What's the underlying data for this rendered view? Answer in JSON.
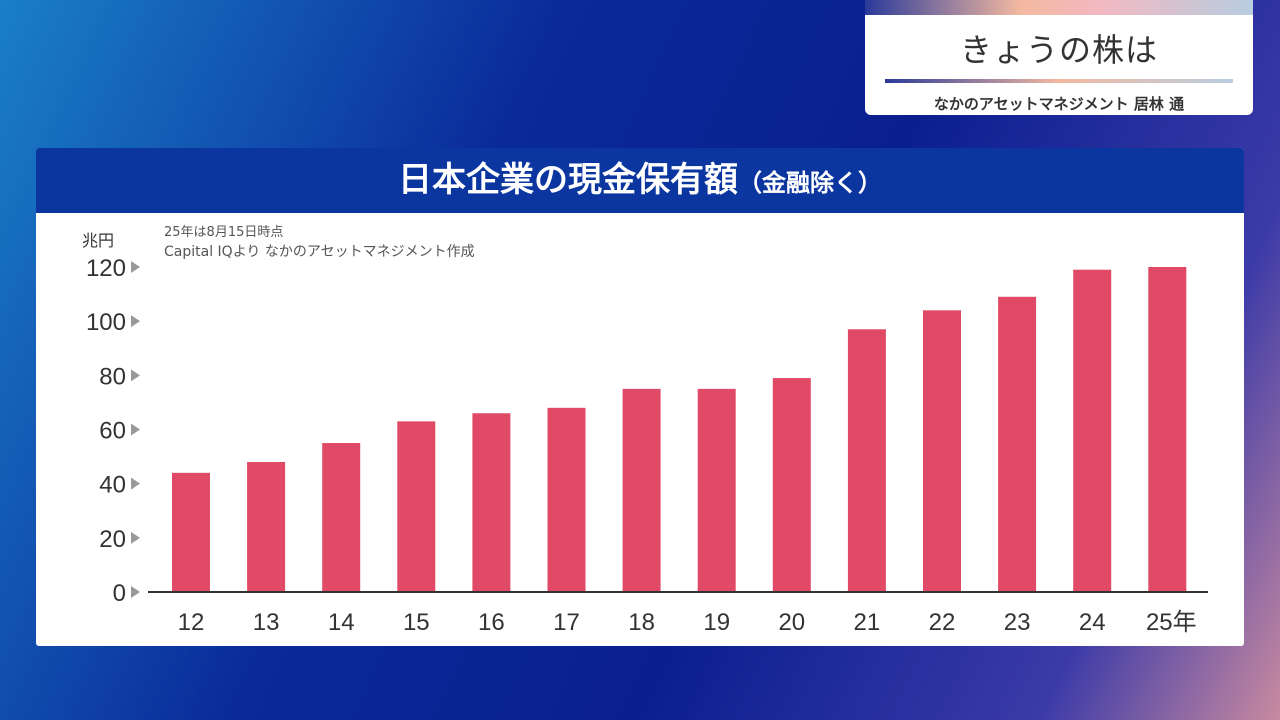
{
  "badge": {
    "title": "きょうの株は",
    "subtitle": "なかのアセットマネジメント 居林 通"
  },
  "panel": {
    "title": "日本企業の現金保有額",
    "title_suffix": "（金融除く）",
    "note1": "25年は8月15日時点",
    "note2": "Capital IQより なかのアセットマネジメント作成"
  },
  "chart_data": {
    "type": "bar",
    "title": "日本企業の現金保有額（金融除く）",
    "ylabel": "兆円",
    "xlabel": "",
    "categories": [
      "12",
      "13",
      "14",
      "15",
      "16",
      "17",
      "18",
      "19",
      "20",
      "21",
      "22",
      "23",
      "24",
      "25年"
    ],
    "values": [
      44,
      48,
      55,
      63,
      66,
      68,
      75,
      75,
      79,
      97,
      104,
      109,
      119,
      120
    ],
    "ylim": [
      0,
      120
    ],
    "yticks": [
      0,
      20,
      40,
      60,
      80,
      100,
      120
    ],
    "bar_color": "#e04a66",
    "grid": false
  }
}
